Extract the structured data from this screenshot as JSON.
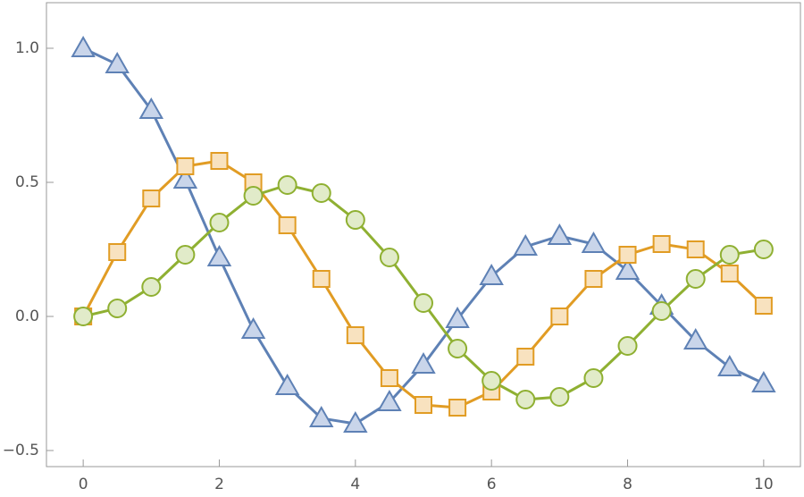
{
  "chart_data": {
    "type": "line",
    "x": [
      0,
      0.5,
      1,
      1.5,
      2,
      2.5,
      3,
      3.5,
      4,
      4.5,
      5,
      5.5,
      6,
      6.5,
      7,
      7.5,
      8,
      8.5,
      9,
      9.5,
      10
    ],
    "series": [
      {
        "color": "#5e81b5",
        "marker_fill": "#c9d5ea",
        "marker": "triangle",
        "values": [
          1,
          0.94,
          0.77,
          0.51,
          0.22,
          -0.05,
          -0.26,
          -0.38,
          -0.4,
          -0.32,
          -0.18,
          -0.01,
          0.15,
          0.26,
          0.3,
          0.27,
          0.17,
          0.04,
          -0.09,
          -0.19,
          -0.25
        ]
      },
      {
        "color": "#e19c24",
        "marker_fill": "#f8e2bf",
        "marker": "square",
        "values": [
          0,
          0.24,
          0.44,
          0.56,
          0.58,
          0.5,
          0.34,
          0.14,
          -0.07,
          -0.23,
          -0.33,
          -0.34,
          -0.28,
          -0.15,
          0,
          0.14,
          0.23,
          0.27,
          0.25,
          0.16,
          0.04
        ]
      },
      {
        "color": "#8fb032",
        "marker_fill": "#e1ebc9",
        "marker": "circle",
        "values": [
          0,
          0.03,
          0.11,
          0.23,
          0.35,
          0.45,
          0.49,
          0.46,
          0.36,
          0.22,
          0.05,
          -0.12,
          -0.24,
          -0.31,
          -0.3,
          -0.23,
          -0.11,
          0.02,
          0.14,
          0.23,
          0.25
        ]
      }
    ],
    "xlim": [
      -0.54,
      10.54
    ],
    "ylim": [
      -0.56,
      1.17
    ],
    "xticks": [
      0,
      2,
      4,
      6,
      8,
      10
    ],
    "yticks": [
      {
        "value": -0.5,
        "label": "−0.5"
      },
      {
        "value": 0,
        "label": "0.0"
      },
      0.5,
      {
        "value": 1,
        "label": "1.0"
      }
    ]
  }
}
